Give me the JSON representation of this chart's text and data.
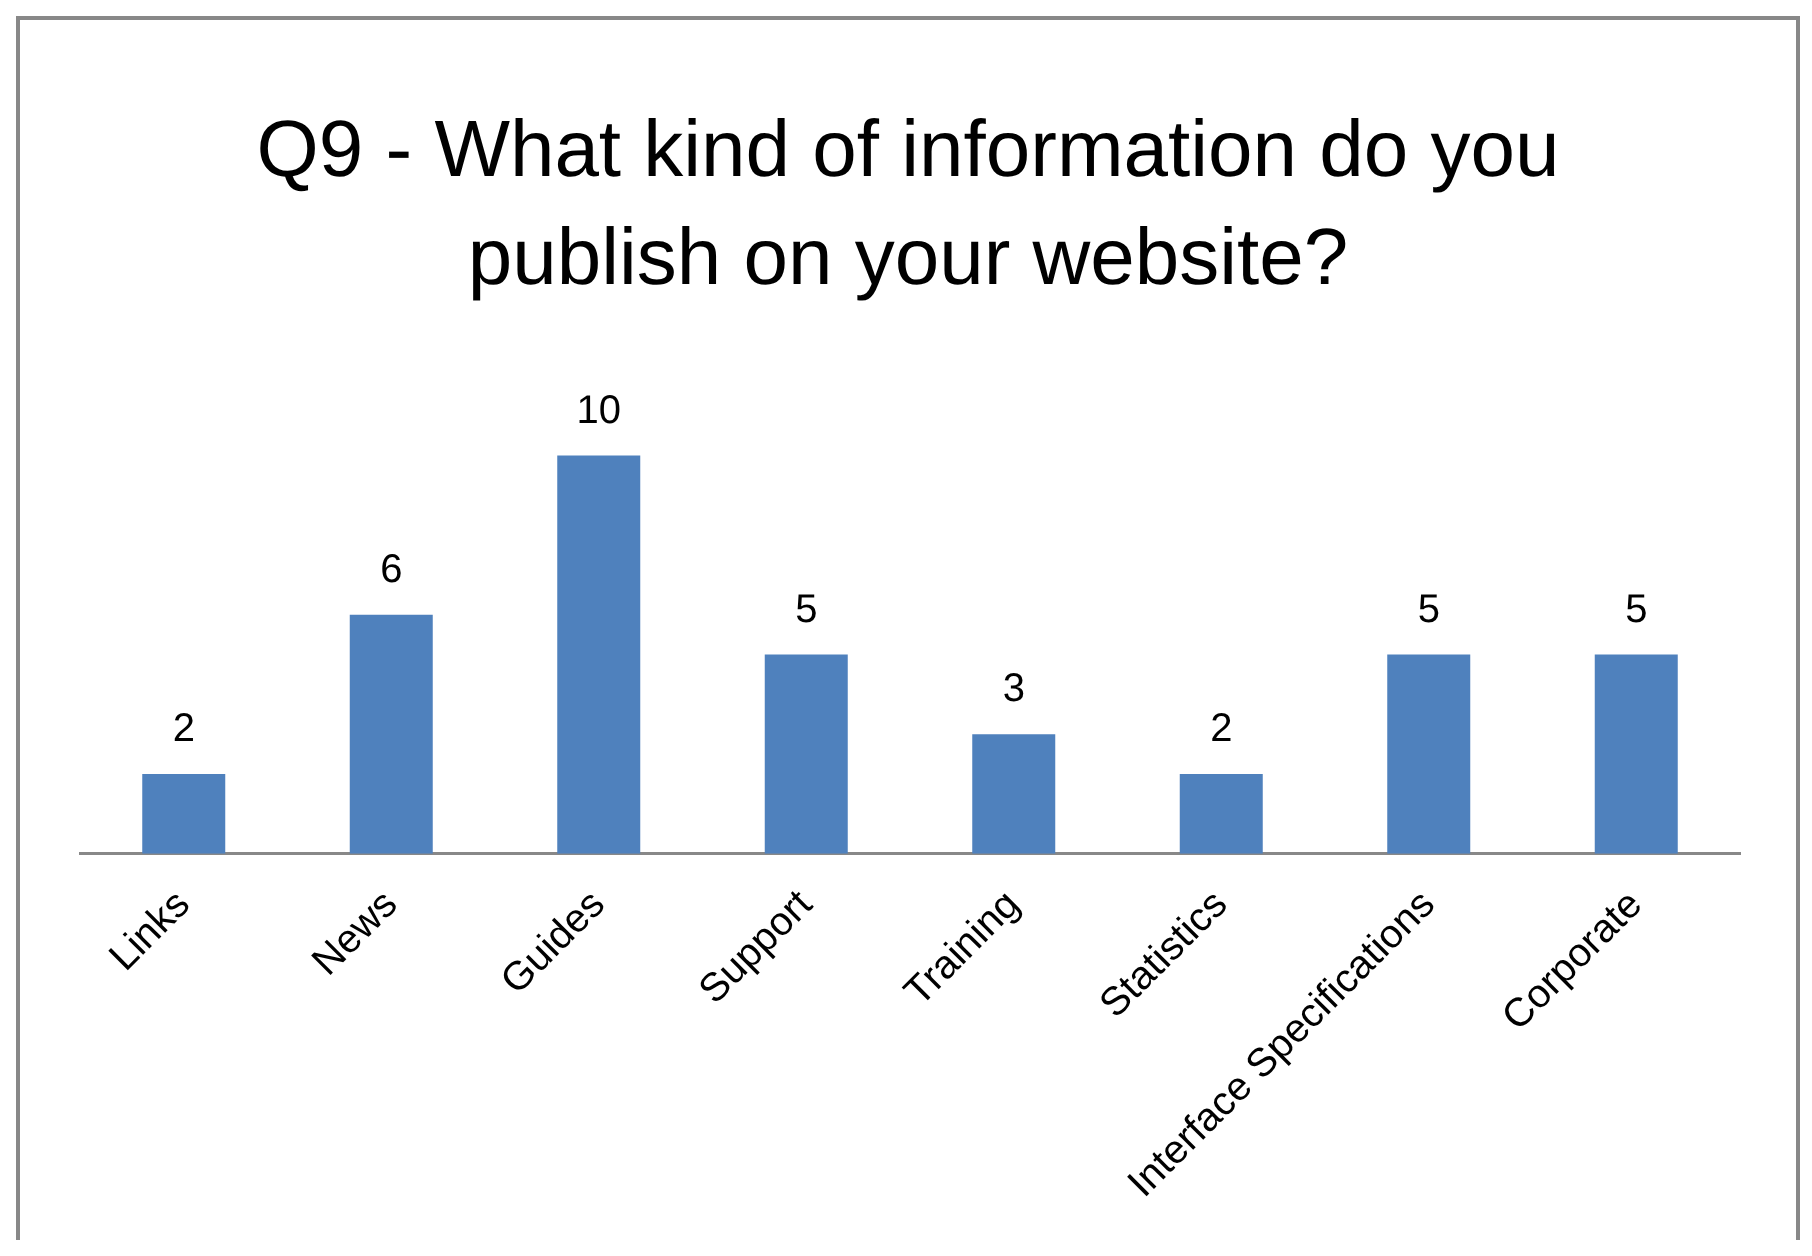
{
  "chart_data": {
    "type": "bar",
    "title": "Q9 - What kind of information do you publish on your website?",
    "categories": [
      "Links",
      "News",
      "Guides",
      "Support",
      "Training",
      "Statistics",
      "Interface Specifications",
      "Corporate"
    ],
    "values": [
      2,
      6,
      10,
      5,
      3,
      2,
      5,
      5
    ],
    "color": "#4f81bd",
    "data_labels": true,
    "grid": false,
    "legend": false
  }
}
